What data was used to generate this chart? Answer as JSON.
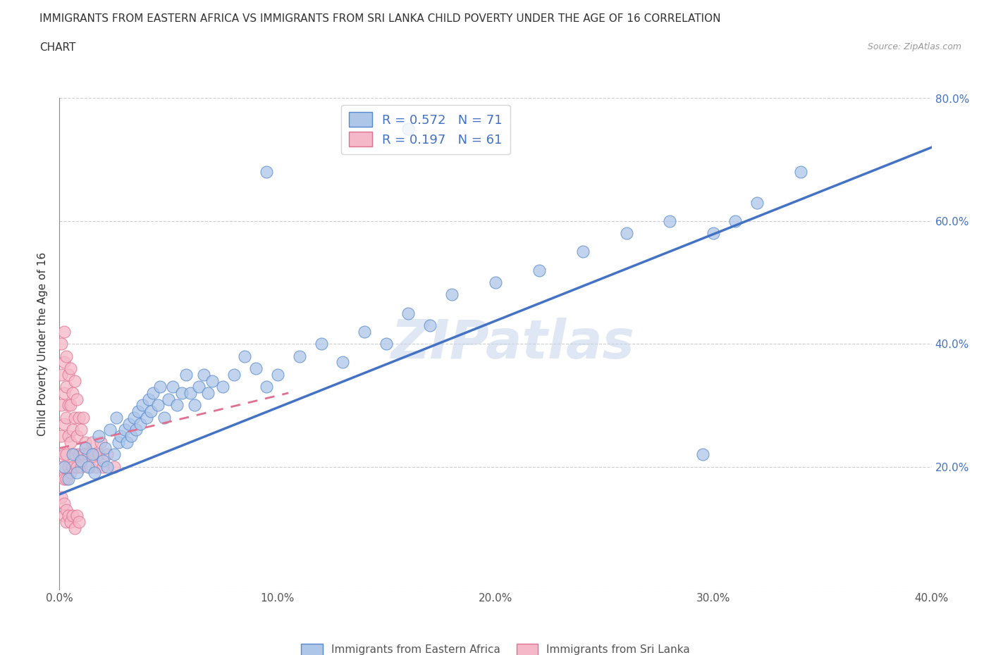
{
  "title_line1": "IMMIGRANTS FROM EASTERN AFRICA VS IMMIGRANTS FROM SRI LANKA CHILD POVERTY UNDER THE AGE OF 16 CORRELATION",
  "title_line2": "CHART",
  "source_text": "Source: ZipAtlas.com",
  "ylabel": "Child Poverty Under the Age of 16",
  "xlim": [
    0.0,
    0.4
  ],
  "ylim": [
    0.0,
    0.8
  ],
  "xticks": [
    0.0,
    0.05,
    0.1,
    0.15,
    0.2,
    0.25,
    0.3,
    0.35,
    0.4
  ],
  "xticklabels": [
    "0.0%",
    "",
    "10.0%",
    "",
    "20.0%",
    "",
    "30.0%",
    "",
    "40.0%"
  ],
  "yticks": [
    0.0,
    0.2,
    0.4,
    0.6,
    0.8
  ],
  "yticklabels_right": [
    "",
    "20.0%",
    "40.0%",
    "60.0%",
    "80.0%"
  ],
  "blue_fill": "#aec6e8",
  "pink_fill": "#f5b8c8",
  "blue_edge": "#5588cc",
  "pink_edge": "#e07090",
  "blue_line_color": "#4472c4",
  "pink_line_color": "#e07090",
  "R_blue": 0.572,
  "N_blue": 71,
  "R_pink": 0.197,
  "N_pink": 61,
  "legend_blue_label": "Immigrants from Eastern Africa",
  "legend_pink_label": "Immigrants from Sri Lanka",
  "watermark": "ZIPatlas",
  "watermark_color": "#c8d8ec",
  "background_color": "#ffffff",
  "blue_scatter_x": [
    0.002,
    0.004,
    0.006,
    0.008,
    0.01,
    0.012,
    0.013,
    0.015,
    0.016,
    0.018,
    0.02,
    0.021,
    0.022,
    0.023,
    0.025,
    0.026,
    0.027,
    0.028,
    0.03,
    0.031,
    0.032,
    0.033,
    0.034,
    0.035,
    0.036,
    0.037,
    0.038,
    0.04,
    0.041,
    0.042,
    0.043,
    0.045,
    0.046,
    0.048,
    0.05,
    0.052,
    0.054,
    0.056,
    0.058,
    0.06,
    0.062,
    0.064,
    0.066,
    0.068,
    0.07,
    0.075,
    0.08,
    0.085,
    0.09,
    0.095,
    0.1,
    0.11,
    0.12,
    0.13,
    0.14,
    0.15,
    0.16,
    0.17,
    0.18,
    0.2,
    0.22,
    0.24,
    0.26,
    0.28,
    0.3,
    0.32,
    0.34,
    0.095,
    0.16,
    0.31,
    0.295
  ],
  "blue_scatter_y": [
    0.2,
    0.18,
    0.22,
    0.19,
    0.21,
    0.23,
    0.2,
    0.22,
    0.19,
    0.25,
    0.21,
    0.23,
    0.2,
    0.26,
    0.22,
    0.28,
    0.24,
    0.25,
    0.26,
    0.24,
    0.27,
    0.25,
    0.28,
    0.26,
    0.29,
    0.27,
    0.3,
    0.28,
    0.31,
    0.29,
    0.32,
    0.3,
    0.33,
    0.28,
    0.31,
    0.33,
    0.3,
    0.32,
    0.35,
    0.32,
    0.3,
    0.33,
    0.35,
    0.32,
    0.34,
    0.33,
    0.35,
    0.38,
    0.36,
    0.33,
    0.35,
    0.38,
    0.4,
    0.37,
    0.42,
    0.4,
    0.45,
    0.43,
    0.48,
    0.5,
    0.52,
    0.55,
    0.58,
    0.6,
    0.58,
    0.63,
    0.68,
    0.68,
    0.75,
    0.6,
    0.22
  ],
  "pink_scatter_x": [
    0.001,
    0.001,
    0.001,
    0.001,
    0.001,
    0.002,
    0.002,
    0.002,
    0.002,
    0.002,
    0.002,
    0.003,
    0.003,
    0.003,
    0.003,
    0.003,
    0.004,
    0.004,
    0.004,
    0.004,
    0.005,
    0.005,
    0.005,
    0.005,
    0.006,
    0.006,
    0.006,
    0.007,
    0.007,
    0.007,
    0.008,
    0.008,
    0.008,
    0.009,
    0.009,
    0.01,
    0.01,
    0.011,
    0.011,
    0.012,
    0.013,
    0.014,
    0.015,
    0.016,
    0.017,
    0.018,
    0.019,
    0.02,
    0.022,
    0.025,
    0.001,
    0.002,
    0.002,
    0.003,
    0.003,
    0.004,
    0.005,
    0.006,
    0.007,
    0.008,
    0.009
  ],
  "pink_scatter_y": [
    0.2,
    0.25,
    0.3,
    0.35,
    0.4,
    0.18,
    0.22,
    0.27,
    0.32,
    0.37,
    0.42,
    0.18,
    0.22,
    0.28,
    0.33,
    0.38,
    0.2,
    0.25,
    0.3,
    0.35,
    0.19,
    0.24,
    0.3,
    0.36,
    0.2,
    0.26,
    0.32,
    0.22,
    0.28,
    0.34,
    0.2,
    0.25,
    0.31,
    0.22,
    0.28,
    0.2,
    0.26,
    0.22,
    0.28,
    0.24,
    0.22,
    0.2,
    0.24,
    0.22,
    0.2,
    0.22,
    0.24,
    0.2,
    0.22,
    0.2,
    0.15,
    0.14,
    0.12,
    0.13,
    0.11,
    0.12,
    0.11,
    0.12,
    0.1,
    0.12,
    0.11
  ],
  "blue_trend_x0": 0.0,
  "blue_trend_x1": 0.4,
  "blue_trend_y0": 0.155,
  "blue_trend_y1": 0.72,
  "pink_trend_x0": 0.0,
  "pink_trend_x1": 0.105,
  "pink_trend_y0": 0.23,
  "pink_trend_y1": 0.32
}
